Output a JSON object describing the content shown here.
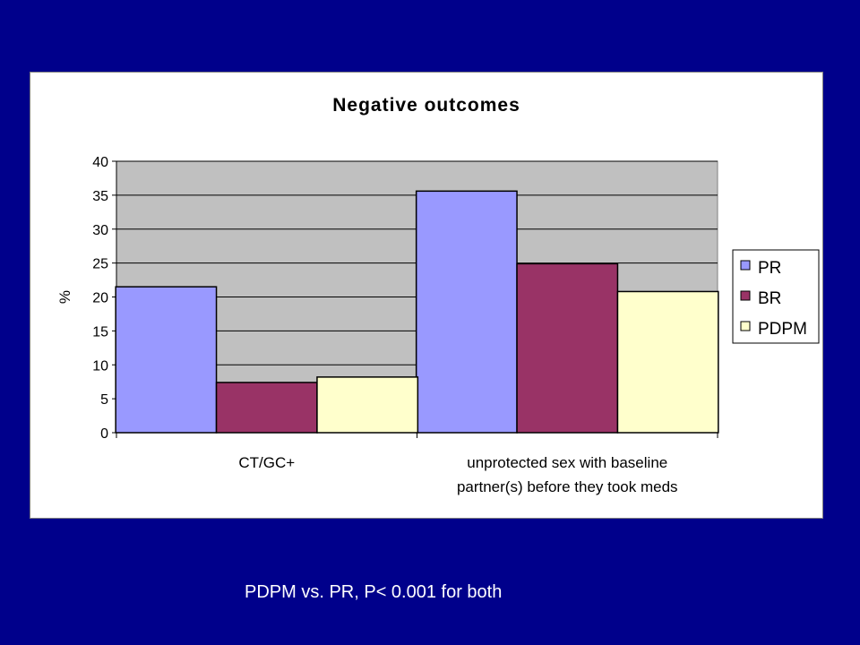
{
  "chart_data": {
    "type": "bar",
    "title": "Negative outcomes",
    "xlabel": "",
    "ylabel": "%",
    "ylim": [
      0,
      40
    ],
    "yticks": [
      0,
      5,
      10,
      15,
      20,
      25,
      30,
      35,
      40
    ],
    "grid": true,
    "legend_position": "right",
    "categories": [
      [
        "CT/GC+"
      ],
      [
        "unprotected sex with baseline",
        "partner(s) before they took meds"
      ]
    ],
    "series": [
      {
        "name": "PR",
        "values": [
          21.5,
          35.6
        ],
        "color": "#9999ff"
      },
      {
        "name": "BR",
        "values": [
          7.4,
          24.9
        ],
        "color": "#993366"
      },
      {
        "name": "PDPM",
        "values": [
          8.2,
          20.8
        ],
        "color": "#ffffcc"
      }
    ],
    "plot_background": "#c0c0c0"
  },
  "footnote": "PDPM vs. PR, P< 0.001 for both",
  "colors": {
    "slide_background": "#00008b",
    "chart_area": "#ffffff"
  }
}
